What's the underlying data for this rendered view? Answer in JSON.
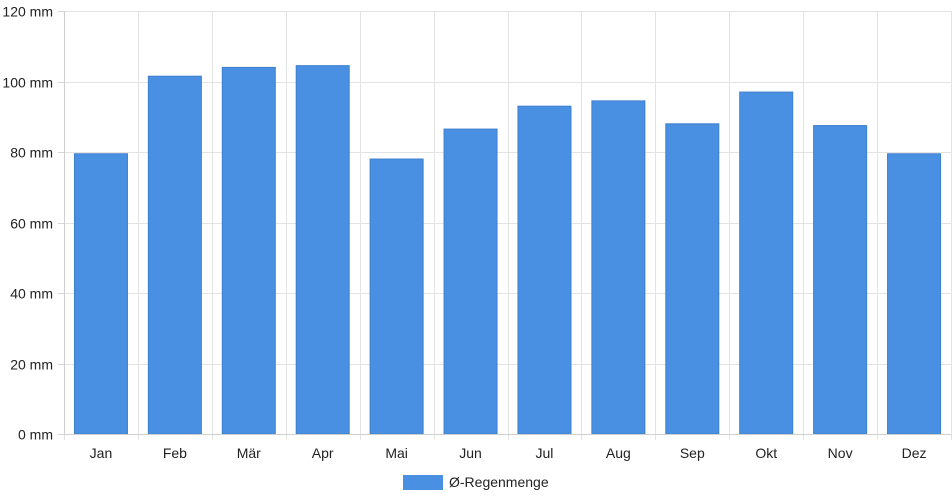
{
  "chart_data": {
    "type": "bar",
    "categories": [
      "Jan",
      "Feb",
      "Mär",
      "Apr",
      "Mai",
      "Jun",
      "Jul",
      "Aug",
      "Sep",
      "Okt",
      "Nov",
      "Dez"
    ],
    "series": [
      {
        "name": "Ø-Regenmenge",
        "values": [
          79.5,
          101.5,
          104,
          104.5,
          78,
          86.5,
          93,
          94.5,
          88,
          97,
          87.5,
          79.5
        ],
        "color": "#4a90e2"
      }
    ],
    "ylim": [
      0,
      120
    ],
    "yticks": [
      0,
      20,
      40,
      60,
      80,
      100,
      120
    ],
    "y_unit_suffix": " mm",
    "grid": true,
    "legend": "bottom-center"
  }
}
